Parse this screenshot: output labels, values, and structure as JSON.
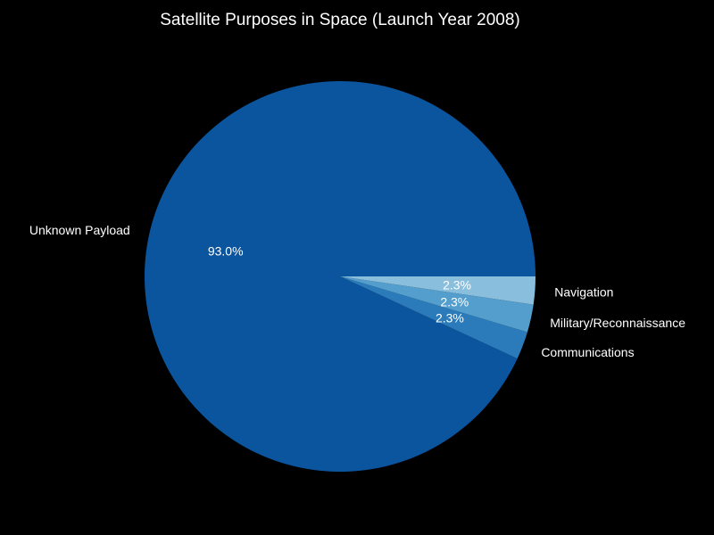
{
  "chart_data": {
    "type": "pie",
    "title": "Satellite Purposes in Space (Launch Year 2008)",
    "background": "#000000",
    "slices": [
      {
        "label": "Unknown Payload",
        "value": 93.0,
        "pct_label": "93.0%",
        "color": "#0b559f"
      },
      {
        "label": "Communications",
        "value": 2.3,
        "pct_label": "2.3%",
        "color": "#2b7bba"
      },
      {
        "label": "Military/Reconnaissance",
        "value": 2.3,
        "pct_label": "2.3%",
        "color": "#539ecd"
      },
      {
        "label": "Navigation",
        "value": 2.3,
        "pct_label": "2.3%",
        "color": "#89bedc"
      }
    ],
    "start_angle": 0,
    "direction": "counterclockwise"
  }
}
